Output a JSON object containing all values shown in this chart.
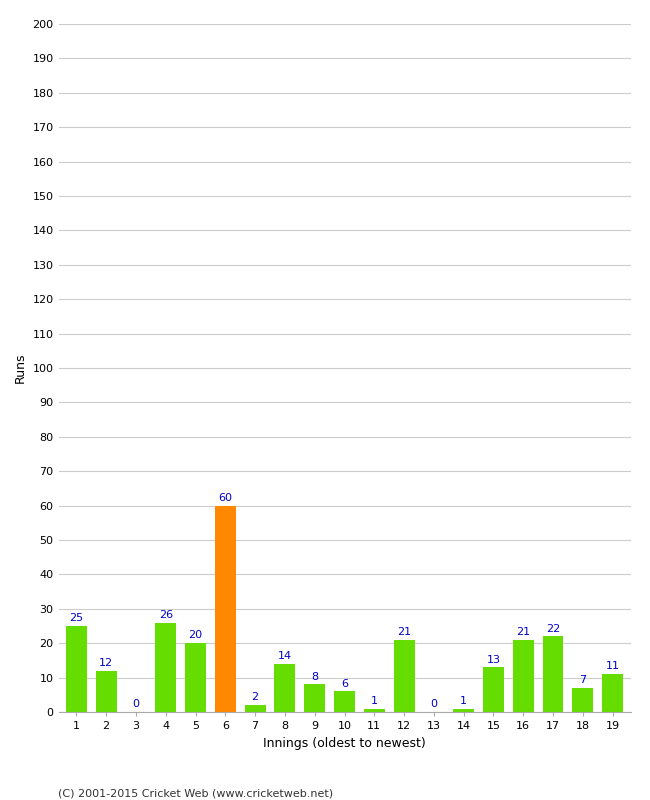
{
  "labels": [
    "1",
    "2",
    "3",
    "4",
    "5",
    "6",
    "7",
    "8",
    "9",
    "10",
    "11",
    "12",
    "13",
    "14",
    "15",
    "16",
    "17",
    "18",
    "19"
  ],
  "values": [
    25,
    12,
    0,
    26,
    20,
    60,
    2,
    14,
    8,
    6,
    1,
    21,
    0,
    1,
    13,
    21,
    22,
    7,
    11
  ],
  "bar_colors": [
    "#66dd00",
    "#66dd00",
    "#66dd00",
    "#66dd00",
    "#66dd00",
    "#ff8800",
    "#66dd00",
    "#66dd00",
    "#66dd00",
    "#66dd00",
    "#66dd00",
    "#66dd00",
    "#66dd00",
    "#66dd00",
    "#66dd00",
    "#66dd00",
    "#66dd00",
    "#66dd00",
    "#66dd00"
  ],
  "xlabel": "Innings (oldest to newest)",
  "ylabel": "Runs",
  "ylim": [
    0,
    200
  ],
  "yticks": [
    0,
    10,
    20,
    30,
    40,
    50,
    60,
    70,
    80,
    90,
    100,
    110,
    120,
    130,
    140,
    150,
    160,
    170,
    180,
    190,
    200
  ],
  "label_color": "#0000cc",
  "footer": "(C) 2001-2015 Cricket Web (www.cricketweb.net)",
  "background_color": "#ffffff",
  "grid_color": "#cccccc",
  "bar_width": 0.7
}
